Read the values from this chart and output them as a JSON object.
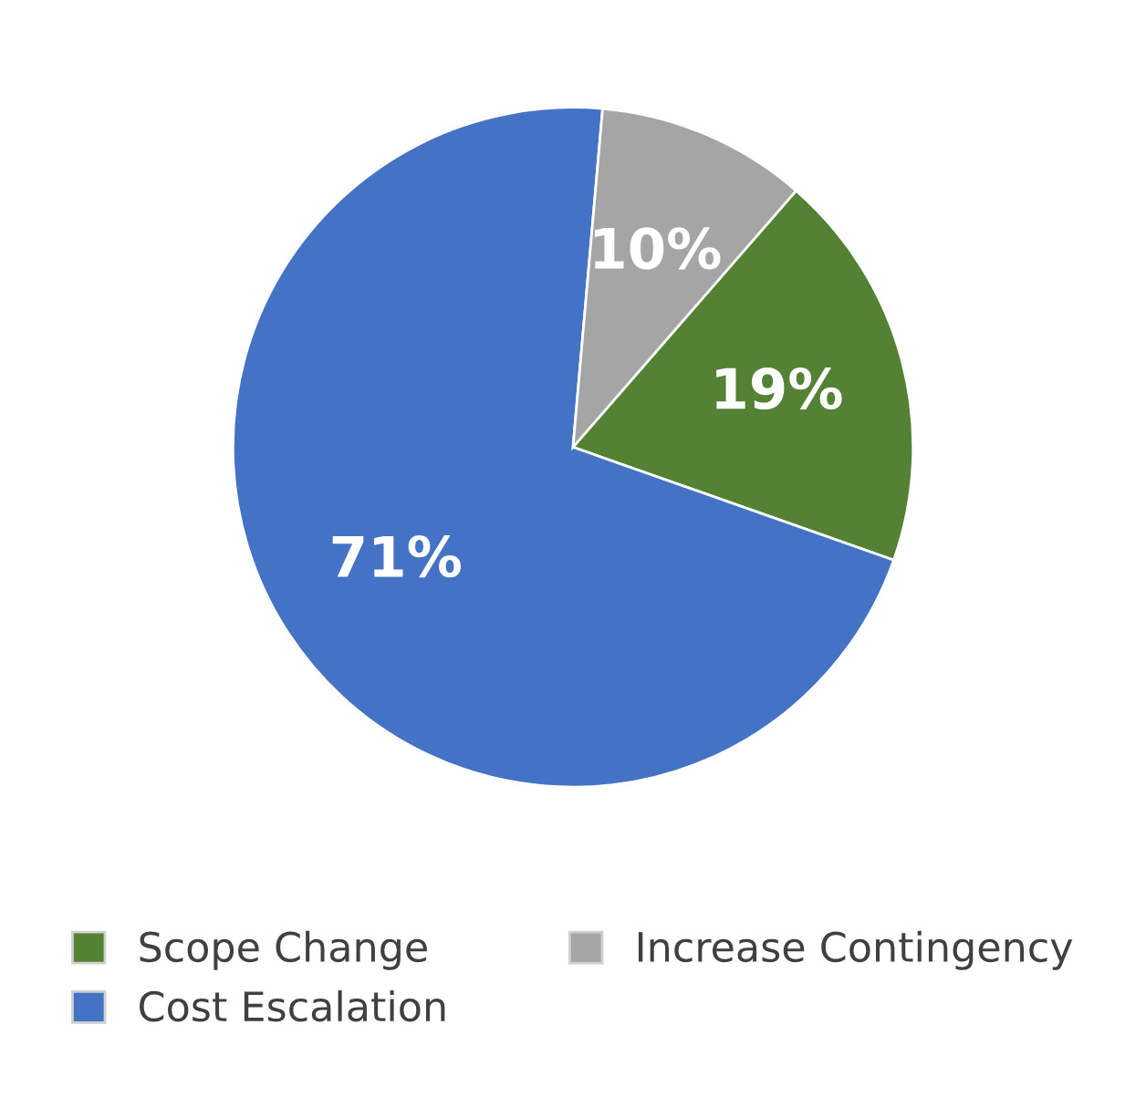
{
  "chart_data": {
    "type": "pie",
    "categories": [
      "Scope Change",
      "Cost Escalation",
      "Increase Contingency"
    ],
    "values": [
      19,
      71,
      10
    ],
    "colors": [
      "#548235",
      "#4472c4",
      "#a5a5a5"
    ],
    "value_labels": [
      "19%",
      "71%",
      "10%"
    ],
    "legend": "bottom"
  }
}
